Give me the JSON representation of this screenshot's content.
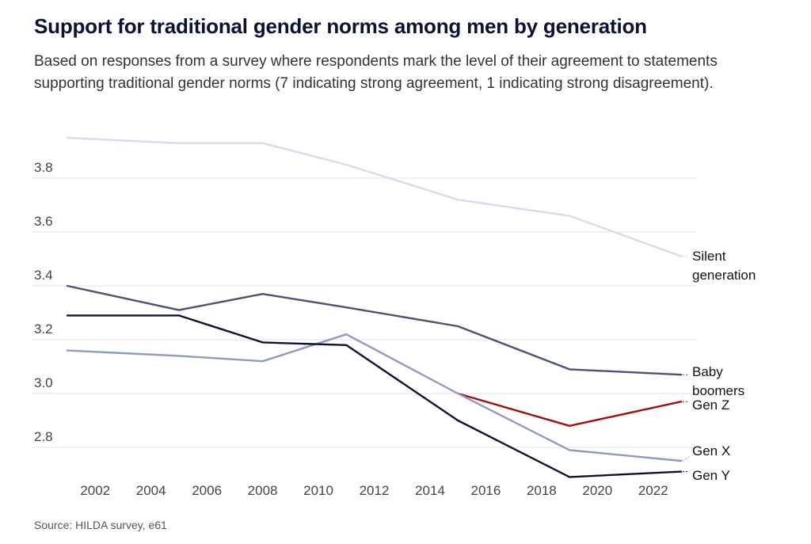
{
  "chart_data": {
    "type": "line",
    "title": "Support for traditional gender norms among men by generation",
    "subtitle": "Based on responses from a survey where respondents mark the level of their agreement to statements supporting traditional gender norms (7 indicating strong agreement, 1 indicating strong disagreement).",
    "source": "Source: HILDA survey, e61",
    "xlabel": "",
    "ylabel": "",
    "xlim": [
      2001,
      2023
    ],
    "ylim": [
      2.7,
      3.95
    ],
    "xticks": [
      2002,
      2004,
      2006,
      2008,
      2010,
      2012,
      2014,
      2016,
      2018,
      2020,
      2022
    ],
    "yticks": [
      2.8,
      3.0,
      3.2,
      3.4,
      3.6,
      3.8
    ],
    "ytick_labels": [
      "2.8",
      "3.0",
      "3.2",
      "3.4",
      "3.6",
      "3.8"
    ],
    "grid": true,
    "series": [
      {
        "name": "Silent generation",
        "color": "#d3dcf2",
        "x": [
          2001,
          2005,
          2008,
          2011,
          2015,
          2019,
          2023
        ],
        "values": [
          3.95,
          3.93,
          3.93,
          3.85,
          3.72,
          3.66,
          3.51
        ]
      },
      {
        "name": "Baby boomers",
        "color": "#4a5275",
        "x": [
          2001,
          2005,
          2008,
          2011,
          2015,
          2019,
          2023
        ],
        "values": [
          3.4,
          3.31,
          3.37,
          3.32,
          3.25,
          3.09,
          3.07
        ]
      },
      {
        "name": "Gen Z",
        "color": "#a30f0f",
        "x": [
          2015,
          2019,
          2023
        ],
        "values": [
          3.0,
          2.88,
          2.97
        ]
      },
      {
        "name": "Gen X",
        "color": "#9099c2",
        "x": [
          2001,
          2005,
          2008,
          2011,
          2015,
          2019,
          2023
        ],
        "values": [
          3.16,
          3.14,
          3.12,
          3.22,
          3.0,
          2.79,
          2.75
        ]
      },
      {
        "name": "Gen Y",
        "color": "#0d1433",
        "x": [
          2001,
          2005,
          2008,
          2011,
          2015,
          2019,
          2023
        ],
        "values": [
          3.29,
          3.29,
          3.19,
          3.18,
          2.9,
          2.69,
          2.71
        ]
      }
    ],
    "labels": [
      {
        "series": "Silent generation",
        "lines": [
          "Silent",
          "generation"
        ]
      },
      {
        "series": "Baby boomers",
        "lines": [
          "Baby",
          "boomers"
        ]
      },
      {
        "series": "Gen Z",
        "lines": [
          "Gen Z"
        ]
      },
      {
        "series": "Gen X",
        "lines": [
          "Gen X"
        ]
      },
      {
        "series": "Gen Y",
        "lines": [
          "Gen Y"
        ]
      }
    ]
  }
}
